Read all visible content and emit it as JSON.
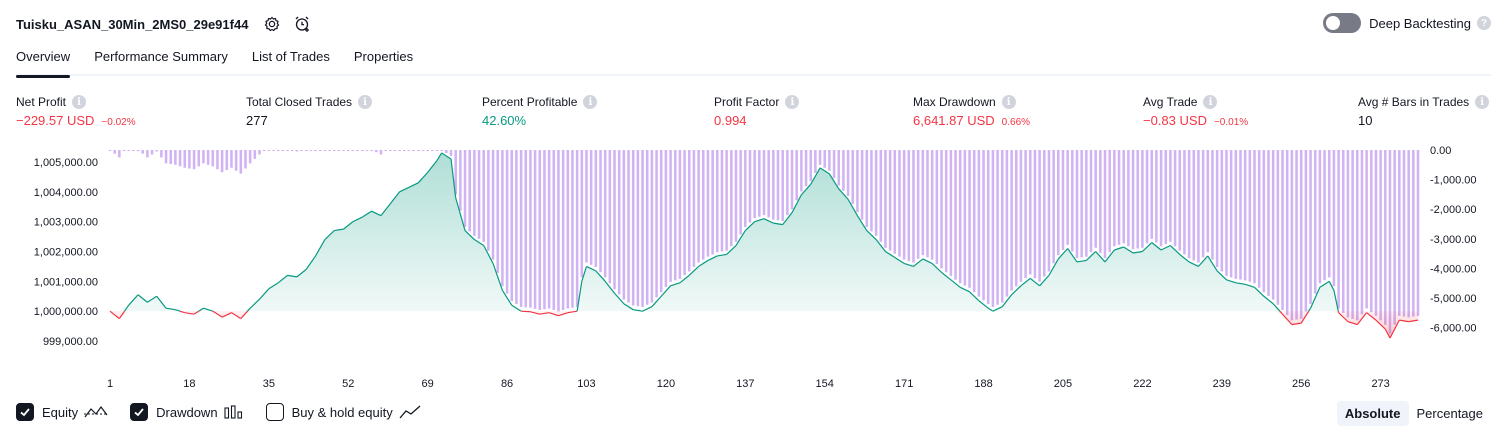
{
  "header": {
    "strategy_name": "Tuisku_ASAN_30Min_2MS0_29e91f44",
    "deep_backtesting_label": "Deep Backtesting",
    "deep_backtesting_enabled": false
  },
  "tabs": [
    {
      "label": "Overview",
      "active": true
    },
    {
      "label": "Performance Summary",
      "active": false
    },
    {
      "label": "List of Trades",
      "active": false
    },
    {
      "label": "Properties",
      "active": false
    }
  ],
  "metrics": [
    {
      "label": "Net Profit",
      "value": "−229.57 USD",
      "sub": "−0.02%",
      "tone": "neg"
    },
    {
      "label": "Total Closed Trades",
      "value": "277",
      "sub": "",
      "tone": "neutral"
    },
    {
      "label": "Percent Profitable",
      "value": "42.60%",
      "sub": "",
      "tone": "pos"
    },
    {
      "label": "Profit Factor",
      "value": "0.994",
      "sub": "",
      "tone": "neg"
    },
    {
      "label": "Max Drawdown",
      "value": "6,641.87 USD",
      "sub": "0.66%",
      "tone": "neg"
    },
    {
      "label": "Avg Trade",
      "value": "−0.83 USD",
      "sub": "−0.01%",
      "tone": "neg"
    },
    {
      "label": "Avg # Bars in Trades",
      "value": "10",
      "sub": "",
      "tone": "neutral"
    }
  ],
  "legend": {
    "equity_label": "Equity",
    "equity_checked": true,
    "drawdown_label": "Drawdown",
    "drawdown_checked": true,
    "buyhold_label": "Buy & hold equity",
    "buyhold_checked": false
  },
  "mode": {
    "absolute_label": "Absolute",
    "percentage_label": "Percentage",
    "selected": "Absolute"
  },
  "colors": {
    "equity_up": "#089981",
    "equity_down": "#f23645",
    "drawdown": "#c9a6f2",
    "text_neg": "#f23645",
    "text_pos": "#089981"
  },
  "chart_data": {
    "type": "area",
    "x_ticks": [
      "1",
      "18",
      "35",
      "52",
      "69",
      "86",
      "103",
      "120",
      "137",
      "154",
      "171",
      "188",
      "205",
      "222",
      "239",
      "256",
      "273"
    ],
    "left_axis_ticks": [
      "1,005,000.00",
      "1,004,000.00",
      "1,003,000.00",
      "1,002,000.00",
      "1,001,000.00",
      "1,000,000.00",
      "999,000.00"
    ],
    "right_axis_ticks": [
      "0.00",
      "-1,000.00",
      "-2,000.00",
      "-3,000.00",
      "-4,000.00",
      "-5,000.00",
      "-6,000.00"
    ],
    "ylim_equity": [
      998800,
      1005400
    ],
    "ylim_drawdown": [
      -6650,
      0
    ],
    "baseline": 1000000,
    "x_range": [
      1,
      281
    ],
    "equity_series": [
      [
        1,
        1000000
      ],
      [
        3,
        999750
      ],
      [
        5,
        1000200
      ],
      [
        7,
        1000550
      ],
      [
        9,
        1000300
      ],
      [
        11,
        1000500
      ],
      [
        13,
        1000100
      ],
      [
        15,
        1000050
      ],
      [
        17,
        999950
      ],
      [
        19,
        999900
      ],
      [
        21,
        1000100
      ],
      [
        23,
        1000000
      ],
      [
        25,
        999800
      ],
      [
        27,
        999950
      ],
      [
        29,
        999750
      ],
      [
        31,
        1000100
      ],
      [
        33,
        1000400
      ],
      [
        35,
        1000750
      ],
      [
        37,
        1000950
      ],
      [
        39,
        1001200
      ],
      [
        41,
        1001150
      ],
      [
        43,
        1001400
      ],
      [
        45,
        1001850
      ],
      [
        47,
        1002400
      ],
      [
        49,
        1002700
      ],
      [
        51,
        1002750
      ],
      [
        53,
        1003000
      ],
      [
        55,
        1003150
      ],
      [
        57,
        1003350
      ],
      [
        59,
        1003200
      ],
      [
        61,
        1003600
      ],
      [
        63,
        1004000
      ],
      [
        65,
        1004150
      ],
      [
        67,
        1004300
      ],
      [
        69,
        1004650
      ],
      [
        71,
        1005050
      ],
      [
        72,
        1005300
      ],
      [
        74,
        1005100
      ],
      [
        75,
        1003800
      ],
      [
        77,
        1002700
      ],
      [
        79,
        1002400
      ],
      [
        81,
        1002200
      ],
      [
        83,
        1001600
      ],
      [
        85,
        1000700
      ],
      [
        87,
        1000200
      ],
      [
        89,
        1000000
      ],
      [
        91,
        999980
      ],
      [
        93,
        999900
      ],
      [
        95,
        999950
      ],
      [
        97,
        999850
      ],
      [
        99,
        999950
      ],
      [
        101,
        1000000
      ],
      [
        102,
        1001000
      ],
      [
        103,
        1001500
      ],
      [
        105,
        1001350
      ],
      [
        107,
        1001000
      ],
      [
        109,
        1000600
      ],
      [
        111,
        1000250
      ],
      [
        113,
        1000050
      ],
      [
        115,
        1000000
      ],
      [
        117,
        1000150
      ],
      [
        119,
        1000500
      ],
      [
        121,
        1000850
      ],
      [
        123,
        1000950
      ],
      [
        125,
        1001200
      ],
      [
        127,
        1001500
      ],
      [
        129,
        1001700
      ],
      [
        131,
        1001850
      ],
      [
        133,
        1001900
      ],
      [
        135,
        1002200
      ],
      [
        137,
        1002700
      ],
      [
        139,
        1003000
      ],
      [
        141,
        1003100
      ],
      [
        143,
        1002950
      ],
      [
        145,
        1002900
      ],
      [
        147,
        1003300
      ],
      [
        149,
        1003900
      ],
      [
        151,
        1004250
      ],
      [
        153,
        1004800
      ],
      [
        155,
        1004600
      ],
      [
        157,
        1004100
      ],
      [
        159,
        1003750
      ],
      [
        161,
        1003200
      ],
      [
        163,
        1002700
      ],
      [
        165,
        1002400
      ],
      [
        167,
        1002000
      ],
      [
        169,
        1001800
      ],
      [
        171,
        1001600
      ],
      [
        173,
        1001500
      ],
      [
        175,
        1001750
      ],
      [
        177,
        1001600
      ],
      [
        179,
        1001300
      ],
      [
        181,
        1001050
      ],
      [
        183,
        1000800
      ],
      [
        185,
        1000650
      ],
      [
        187,
        1000350
      ],
      [
        189,
        1000100
      ],
      [
        190,
        1000000
      ],
      [
        192,
        1000150
      ],
      [
        194,
        1000550
      ],
      [
        196,
        1000850
      ],
      [
        198,
        1001100
      ],
      [
        200,
        1000850
      ],
      [
        202,
        1001200
      ],
      [
        204,
        1001750
      ],
      [
        206,
        1002100
      ],
      [
        208,
        1001650
      ],
      [
        210,
        1001700
      ],
      [
        212,
        1002000
      ],
      [
        214,
        1001650
      ],
      [
        216,
        1002050
      ],
      [
        218,
        1002150
      ],
      [
        220,
        1001950
      ],
      [
        222,
        1002000
      ],
      [
        224,
        1002300
      ],
      [
        226,
        1002050
      ],
      [
        228,
        1002200
      ],
      [
        230,
        1001900
      ],
      [
        232,
        1001650
      ],
      [
        234,
        1001500
      ],
      [
        236,
        1001850
      ],
      [
        238,
        1001350
      ],
      [
        240,
        1001050
      ],
      [
        242,
        1000950
      ],
      [
        244,
        1000900
      ],
      [
        246,
        1000800
      ],
      [
        248,
        1000500
      ],
      [
        250,
        1000250
      ],
      [
        252,
        999900
      ],
      [
        254,
        999550
      ],
      [
        256,
        999600
      ],
      [
        258,
        1000100
      ],
      [
        260,
        1000800
      ],
      [
        262,
        1001000
      ],
      [
        263,
        1000700
      ],
      [
        264,
        999950
      ],
      [
        266,
        999650
      ],
      [
        268,
        999550
      ],
      [
        270,
        999950
      ],
      [
        272,
        999700
      ],
      [
        274,
        999400
      ],
      [
        275,
        999100
      ],
      [
        277,
        999700
      ],
      [
        279,
        999650
      ],
      [
        281,
        999700
      ]
    ]
  }
}
